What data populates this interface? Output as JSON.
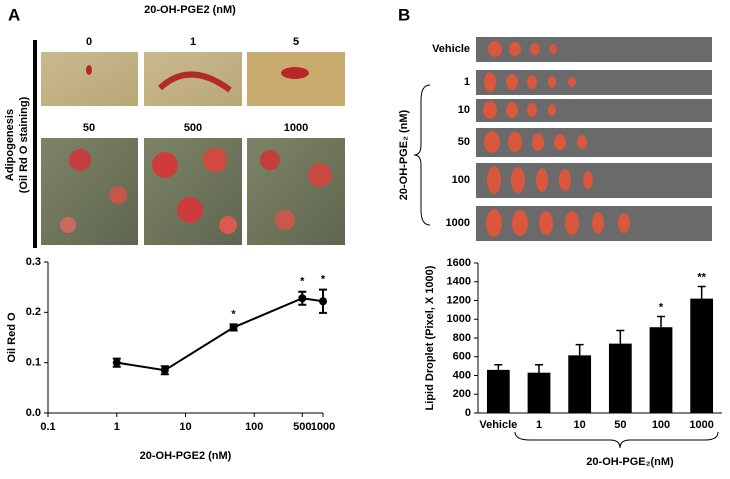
{
  "panel_a": {
    "letter": "A",
    "title": "20-OH-PGE2 (nM)",
    "side_label_1": "Adipogenesis",
    "side_label_2": "(Oil Rd O staining)",
    "image_labels": [
      "0",
      "1",
      "5",
      "50",
      "500",
      "1000"
    ]
  },
  "panel_b": {
    "letter": "B",
    "side_label": "20-OH-PGE₂ (nM)",
    "image_labels": [
      "Vehicle",
      "1",
      "10",
      "50",
      "100",
      "1000"
    ]
  },
  "chart_data": [
    {
      "type": "line",
      "xlabel": "20-OH-PGE2 (nM)",
      "ylabel": "Oil Red O",
      "x": [
        1,
        5,
        50,
        500,
        1000
      ],
      "values": [
        0.1,
        0.085,
        0.17,
        0.228,
        0.222
      ],
      "errors": [
        0.008,
        0.008,
        0.006,
        0.013,
        0.023
      ],
      "significance": [
        null,
        null,
        "*",
        "*",
        "*"
      ],
      "color": "#000000",
      "xscale": "log",
      "xlim": [
        0.1,
        1000
      ],
      "xticks": [
        0.1,
        1,
        10,
        100,
        500,
        1000
      ],
      "ylim": [
        0,
        0.3
      ],
      "yticks": [
        {
          "value": 0,
          "label": "0.0"
        },
        0.1,
        0.2,
        0.3
      ]
    },
    {
      "type": "bar",
      "xlabel": "20-OH-PGE₂(nM)",
      "ylabel": "Lipid Droplet (Pixel, X 1000)",
      "categories": [
        "Vehicle",
        "1",
        "10",
        "50",
        "100",
        "1000"
      ],
      "values": [
        460,
        430,
        615,
        740,
        915,
        1220
      ],
      "errors": [
        55,
        85,
        115,
        140,
        115,
        130
      ],
      "significance": [
        null,
        null,
        null,
        null,
        "*",
        "**"
      ],
      "color": "#000000",
      "ylim": [
        0,
        1600
      ],
      "yticks": [
        0,
        200,
        400,
        600,
        800,
        1000,
        1200,
        1400,
        1600
      ]
    }
  ]
}
